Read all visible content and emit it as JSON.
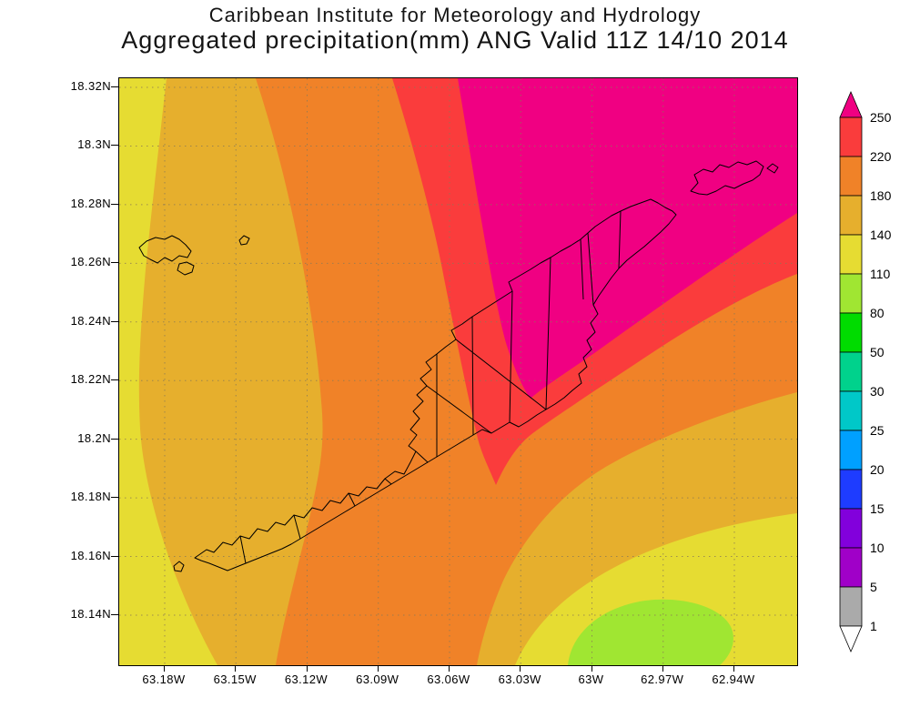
{
  "header": {
    "title_line1": "Caribbean Institute for Meteorology and Hydrology",
    "title_line2": "Aggregated precipitation(mm) ANG Valid 11Z 14/10 2014"
  },
  "map": {
    "region_label": "ANG (Anguilla) coastline with district boundaries",
    "grid_style": "dotted",
    "lat_labels": [
      "18.32N",
      "18.3N",
      "18.28N",
      "18.26N",
      "18.24N",
      "18.22N",
      "18.2N",
      "18.18N",
      "18.16N",
      "18.14N"
    ],
    "lon_labels": [
      "63.18W",
      "63.15W",
      "63.12W",
      "63.09W",
      "63.06W",
      "63.03W",
      "63W",
      "62.97W",
      "62.94W"
    ]
  },
  "colorbar": {
    "levels_top_to_bottom": [
      "250",
      "220",
      "180",
      "140",
      "110",
      "80",
      "50",
      "30",
      "25",
      "20",
      "15",
      "10",
      "5",
      "1"
    ],
    "band_colors_top_to_bottom": [
      "#fa3c3c",
      "#f08228",
      "#e6af2d",
      "#e6dc32",
      "#a0e632",
      "#00dc00",
      "#00d28c",
      "#00c8c8",
      "#00a0ff",
      "#1e3cff",
      "#8200dc",
      "#a000c8",
      "#aaaaaa"
    ],
    "above_max_color": "#f00082",
    "below_min_color": "#ffffff"
  },
  "palette": {
    "magenta_gt_250": "#f00082",
    "red_220_250": "#fa3c3c",
    "orange_180_220": "#f08228",
    "amber_140_180": "#e6af2d",
    "yellow_110_140": "#e6dc32",
    "yellowgreen_80_110": "#a0e632",
    "coastline": "#000000",
    "gridline": "#8a7a55"
  },
  "chart_data": {
    "type": "heatmap",
    "title": "Aggregated precipitation(mm) ANG Valid 11Z 14/10 2014",
    "units": "mm",
    "lat_range": [
      "18.14N",
      "18.32N"
    ],
    "lon_range": [
      "63.18W",
      "62.94W"
    ],
    "contour_levels": [
      1,
      5,
      10,
      15,
      20,
      25,
      30,
      50,
      80,
      110,
      140,
      180,
      220,
      250
    ],
    "legend_position": "right vertical color bar with arrow caps",
    "visible_bands_on_map": [
      ">250 magenta core over northeast",
      "220-250 red band around core",
      "180-220 orange over centre",
      "140-180 amber belt",
      "110-140 yellow west edge and southeast",
      "80-110 yellow-green patch at bottom right"
    ],
    "notes": "Filled contour precipitation analysis over Anguilla; dotted lat/lon graticule every 0.02 deg lat / 0.03 deg lon"
  }
}
